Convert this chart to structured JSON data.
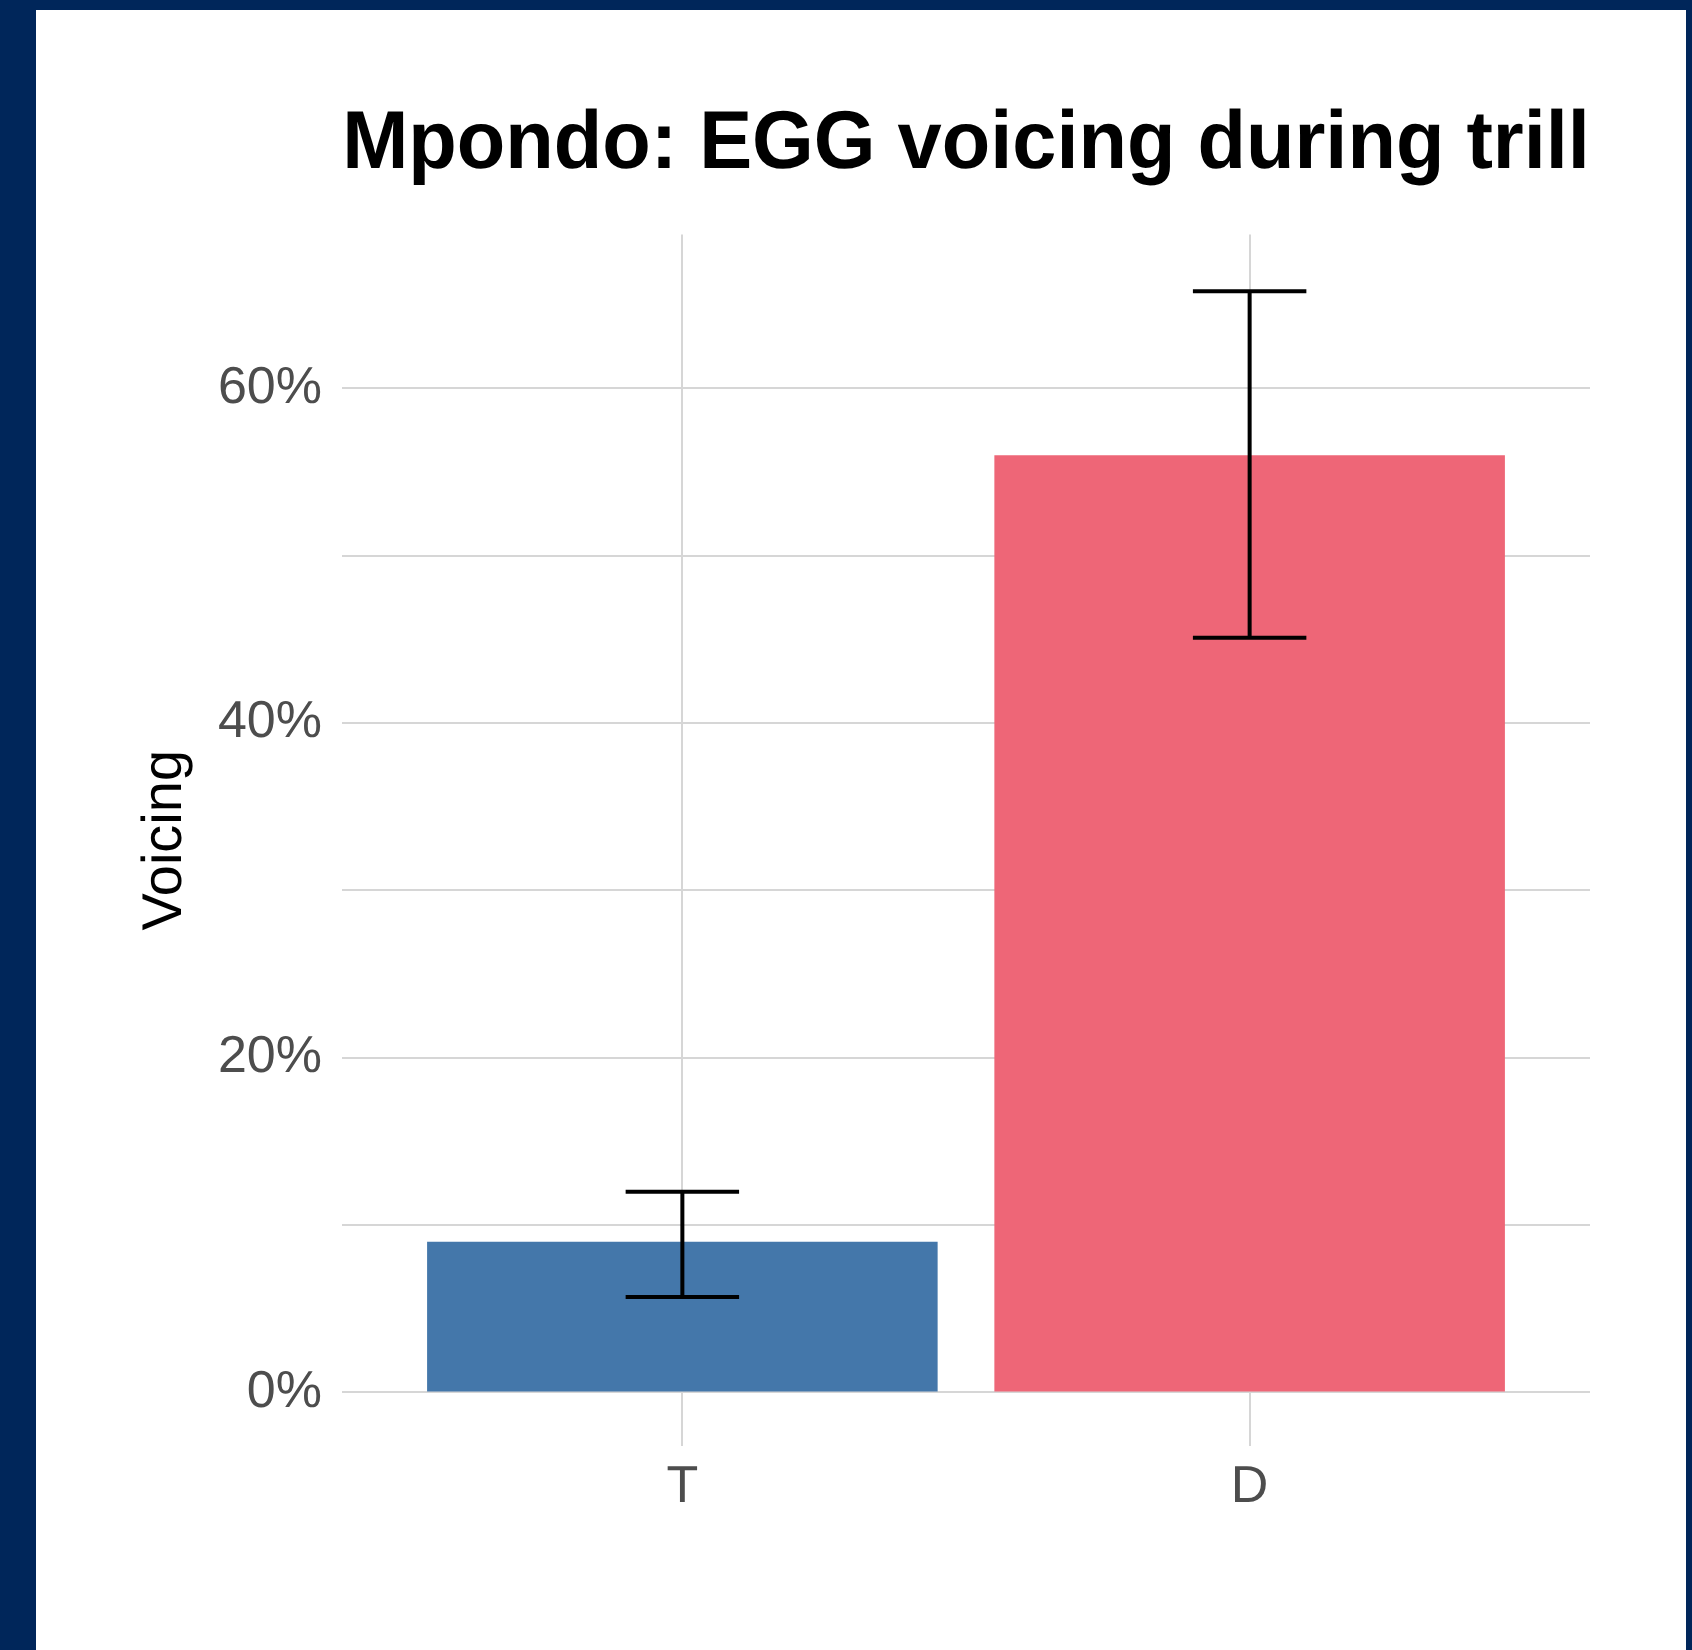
{
  "chart_data": {
    "type": "bar",
    "title": "Mpondo: EGG voicing during trill",
    "ylabel": "Voicing",
    "categories": [
      "T",
      "D"
    ],
    "values": [
      9,
      56
    ],
    "errors": [
      [
        5.7,
        12
      ],
      [
        45.1,
        65.8
      ]
    ],
    "colors": [
      "#4477aa",
      "#ee6677"
    ],
    "ylim": [
      -3.2,
      69.2
    ],
    "yticks": [
      {
        "value": 0,
        "label": "0%"
      },
      {
        "value": 10,
        "label": null
      },
      {
        "value": 20,
        "label": "20%"
      },
      {
        "value": 30,
        "label": null
      },
      {
        "value": 40,
        "label": "40%"
      },
      {
        "value": 50,
        "label": null
      },
      {
        "value": 60,
        "label": "60%"
      }
    ],
    "grid": true
  }
}
